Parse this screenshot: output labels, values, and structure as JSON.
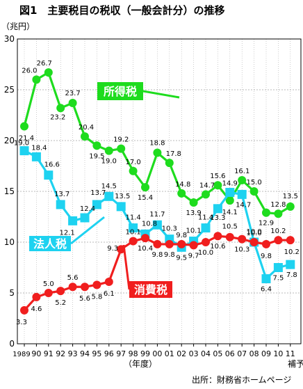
{
  "chart_data": {
    "type": "line",
    "title": "図1　主要税目の税収（一般会計分）の推移",
    "unit_label": "（兆円）",
    "x_label": "（年度）",
    "source": "出所：財務省ホームページ",
    "x_tick_labels": [
      "1989",
      "90",
      "91",
      "92",
      "93",
      "94",
      "95",
      "96",
      "97",
      "98",
      "99",
      "00",
      "01",
      "02",
      "03",
      "04",
      "05",
      "06",
      "07",
      "08",
      "09",
      "10",
      "11"
    ],
    "x_extra_label": "補予",
    "y_ticks": [
      "0",
      "5",
      "10",
      "15",
      "20",
      "25",
      "30"
    ],
    "ylim": [
      0,
      30
    ],
    "grid": true,
    "series": [
      {
        "name": "所得税",
        "color": "#1edc1e",
        "values": [
          21.4,
          26.0,
          26.7,
          23.2,
          23.7,
          20.4,
          19.5,
          19.0,
          19.2,
          17.0,
          15.4,
          18.8,
          17.8,
          14.8,
          13.9,
          14.7,
          15.6,
          14.1,
          16.1,
          15.0,
          12.9,
          12.8,
          13.5
        ],
        "labels": [
          "21.4",
          "26.0",
          "26.7",
          "23.2",
          "23.7",
          "20.4",
          "19.5",
          "19.0",
          "19.2",
          "17.0",
          "15.4",
          "18.8",
          "17.8",
          "14.8",
          "13.9",
          "14.7",
          "15.6",
          "14.1",
          "16.1",
          "15.0",
          "12.9",
          "12.8",
          "13.5"
        ]
      },
      {
        "name": "法人税",
        "color": "#1ed2f0",
        "values": [
          19.0,
          18.4,
          16.6,
          13.7,
          12.1,
          12.4,
          13.7,
          14.5,
          13.5,
          11.4,
          10.8,
          11.7,
          10.3,
          9.5,
          10.1,
          11.4,
          13.3,
          14.9,
          14.7,
          10.0,
          6.4,
          7.5,
          7.8
        ],
        "labels": [
          "19.0",
          "18.4",
          "16.6",
          "13.7",
          "12.1",
          "12.4",
          "13.7",
          "14.5",
          "13.5",
          "11.4",
          "10.8",
          "11.7",
          "10.3",
          "9.5",
          "10.1",
          "11.4",
          "13.3",
          "14.9",
          "14.7",
          "10.0",
          "6.4",
          "7.5",
          "7.8"
        ]
      },
      {
        "name": "消費税",
        "color": "#f01e1e",
        "values": [
          3.3,
          4.6,
          5.0,
          5.2,
          5.6,
          5.6,
          5.8,
          6.1,
          9.3,
          10.1,
          10.4,
          9.8,
          9.8,
          9.8,
          9.7,
          10.0,
          10.6,
          10.5,
          10.3,
          10.0,
          9.8,
          10.2,
          10.2
        ],
        "labels": [
          "3.3",
          "4.6",
          "5.0",
          "5.2",
          "5.6",
          "5.6",
          "5.8",
          "6.1",
          "9.3",
          "10.1",
          "10.4",
          "9.8",
          "9.8",
          "9.8",
          "9.7",
          "10.0",
          "10.6",
          "10.5",
          "10.3",
          "10.0",
          "9.8",
          "10.2",
          "10.2"
        ]
      }
    ]
  }
}
